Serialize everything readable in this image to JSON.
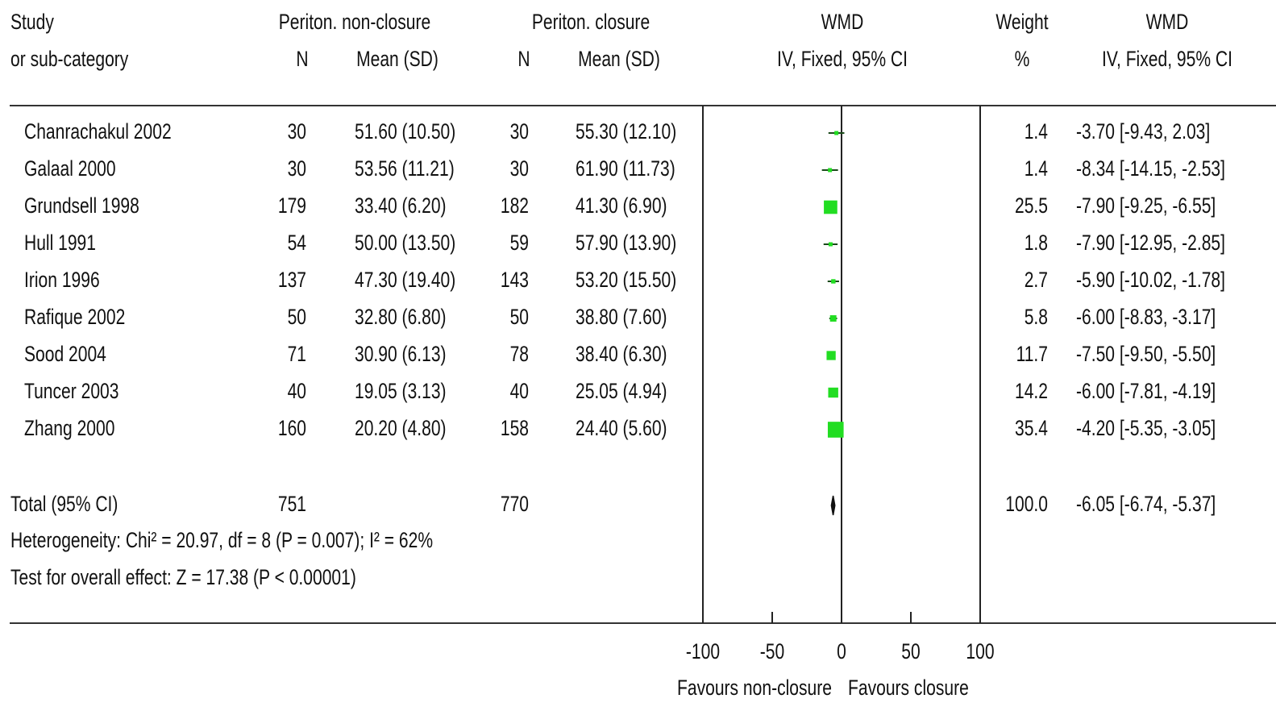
{
  "header": {
    "study": "Study",
    "subcat": "or sub-category",
    "group1": "Periton. non-closure",
    "group2": "Periton. closure",
    "n1": "N",
    "mean1": "Mean (SD)",
    "n2": "N",
    "mean2": "Mean (SD)",
    "wmd_plot": "WMD",
    "wmd_plot_method": "IV, Fixed, 95% CI",
    "weight": "Weight",
    "weight_unit": "%",
    "wmd_text": "WMD",
    "wmd_text_method": "IV, Fixed, 95% CI"
  },
  "rows": [
    {
      "study": "Chanrachakul 2002",
      "n1": "30",
      "mean1": "51.60 (10.50)",
      "n2": "30",
      "mean2": "55.30 (12.10)",
      "weight": "1.4",
      "ci_text": "-3.70 [-9.43, 2.03]"
    },
    {
      "study": "Galaal 2000",
      "n1": "30",
      "mean1": "53.56 (11.21)",
      "n2": "30",
      "mean2": "61.90 (11.73)",
      "weight": "1.4",
      "ci_text": "-8.34 [-14.15, -2.53]"
    },
    {
      "study": "Grundsell 1998",
      "n1": "179",
      "mean1": "33.40 (6.20)",
      "n2": "182",
      "mean2": "41.30 (6.90)",
      "weight": "25.5",
      "ci_text": "-7.90 [-9.25, -6.55]"
    },
    {
      "study": "Hull 1991",
      "n1": "54",
      "mean1": "50.00 (13.50)",
      "n2": "59",
      "mean2": "57.90 (13.90)",
      "weight": "1.8",
      "ci_text": "-7.90 [-12.95, -2.85]"
    },
    {
      "study": "Irion 1996",
      "n1": "137",
      "mean1": "47.30 (19.40)",
      "n2": "143",
      "mean2": "53.20 (15.50)",
      "weight": "2.7",
      "ci_text": "-5.90 [-10.02, -1.78]"
    },
    {
      "study": "Rafique 2002",
      "n1": "50",
      "mean1": "32.80 (6.80)",
      "n2": "50",
      "mean2": "38.80 (7.60)",
      "weight": "5.8",
      "ci_text": "-6.00 [-8.83, -3.17]"
    },
    {
      "study": "Sood 2004",
      "n1": "71",
      "mean1": "30.90 (6.13)",
      "n2": "78",
      "mean2": "38.40 (6.30)",
      "weight": "11.7",
      "ci_text": "-7.50 [-9.50, -5.50]"
    },
    {
      "study": "Tuncer 2003",
      "n1": "40",
      "mean1": "19.05 (3.13)",
      "n2": "40",
      "mean2": "25.05 (4.94)",
      "weight": "14.2",
      "ci_text": "-6.00 [-7.81, -4.19]"
    },
    {
      "study": "Zhang 2000",
      "n1": "160",
      "mean1": "20.20 (4.80)",
      "n2": "158",
      "mean2": "24.40 (5.60)",
      "weight": "35.4",
      "ci_text": "-4.20 [-5.35, -3.05]"
    }
  ],
  "total": {
    "label": "Total (95% CI)",
    "n1": "751",
    "n2": "770",
    "weight": "100.0",
    "ci_text": "-6.05 [-6.74, -5.37]",
    "heterogeneity": "Heterogeneity: Chi² = 20.97, df = 8 (P = 0.007); I² = 62%",
    "overall": "Test for overall effect: Z = 17.38 (P < 0.00001)"
  },
  "axis": {
    "ticks": [
      "-100",
      "-50",
      "0",
      "50",
      "100"
    ],
    "favours_left": "Favours non-closure",
    "favours_right": "Favours closure"
  },
  "chart_data": {
    "type": "scatter",
    "xlim": [
      -100,
      100
    ],
    "xticks": [
      -100,
      -50,
      0,
      50,
      100
    ],
    "points": [
      {
        "study": "Chanrachakul 2002",
        "estimate": -3.7,
        "lower": -9.43,
        "upper": 2.03,
        "weight": 1.4
      },
      {
        "study": "Galaal 2000",
        "estimate": -8.34,
        "lower": -14.15,
        "upper": -2.53,
        "weight": 1.4
      },
      {
        "study": "Grundsell 1998",
        "estimate": -7.9,
        "lower": -9.25,
        "upper": -6.55,
        "weight": 25.5
      },
      {
        "study": "Hull 1991",
        "estimate": -7.9,
        "lower": -12.95,
        "upper": -2.85,
        "weight": 1.8
      },
      {
        "study": "Irion 1996",
        "estimate": -5.9,
        "lower": -10.02,
        "upper": -1.78,
        "weight": 2.7
      },
      {
        "study": "Rafique 2002",
        "estimate": -6.0,
        "lower": -8.83,
        "upper": -3.17,
        "weight": 5.8
      },
      {
        "study": "Sood 2004",
        "estimate": -7.5,
        "lower": -9.5,
        "upper": -5.5,
        "weight": 11.7
      },
      {
        "study": "Tuncer 2003",
        "estimate": -6.0,
        "lower": -7.81,
        "upper": -4.19,
        "weight": 14.2
      },
      {
        "study": "Zhang 2000",
        "estimate": -4.2,
        "lower": -5.35,
        "upper": -3.05,
        "weight": 35.4
      }
    ],
    "pooled": {
      "estimate": -6.05,
      "lower": -6.74,
      "upper": -5.37
    },
    "marker_color": "#22dd22",
    "line_color": "#1a4a1a"
  }
}
